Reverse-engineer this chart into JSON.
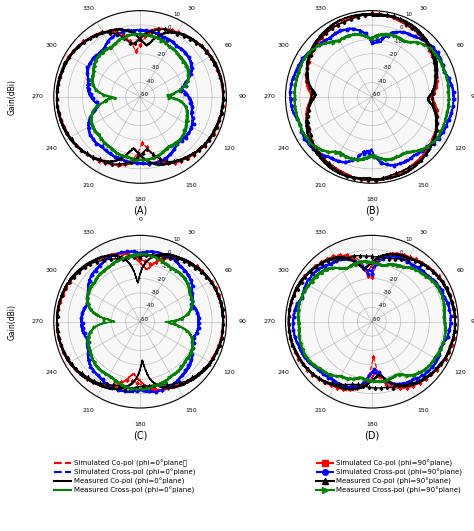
{
  "subplot_labels": [
    "(A)",
    "(B)",
    "(C)",
    "(D)"
  ],
  "r_ticks": [
    10,
    0,
    -10,
    -20,
    -30,
    -40,
    -50
  ],
  "r_min": -50,
  "r_max": 10,
  "background_color": "#ffffff",
  "ylabel": "Gain(dBi)",
  "legend_left": [
    {
      "label": "Simulated Co-pol (phi=0°plane）",
      "color": "red",
      "ls": "--",
      "marker": null
    },
    {
      "label": "Simulated Cross-pol (phi=0°plane)",
      "color": "blue",
      "ls": "--",
      "marker": null
    },
    {
      "label": "Measured Co-pol (phi=0°plane)",
      "color": "black",
      "ls": "-",
      "marker": null
    },
    {
      "label": "Measured Cross-pol (phi=0°plane)",
      "color": "green",
      "ls": "-",
      "marker": null
    }
  ],
  "legend_right": [
    {
      "label": "Simulated Co-pol (phi=90°plane)",
      "color": "red",
      "ls": "--",
      "marker": "s"
    },
    {
      "label": "Simulated Cross-pol (phi=90°plane)",
      "color": "blue",
      "ls": "--",
      "marker": "o"
    },
    {
      "label": "Measured Co-pol (phi=90°plane)",
      "color": "black",
      "ls": "-",
      "marker": "^"
    },
    {
      "label": "Measured Cross-pol (phi=90°plane)",
      "color": "green",
      "ls": "-",
      "marker": ">"
    }
  ]
}
